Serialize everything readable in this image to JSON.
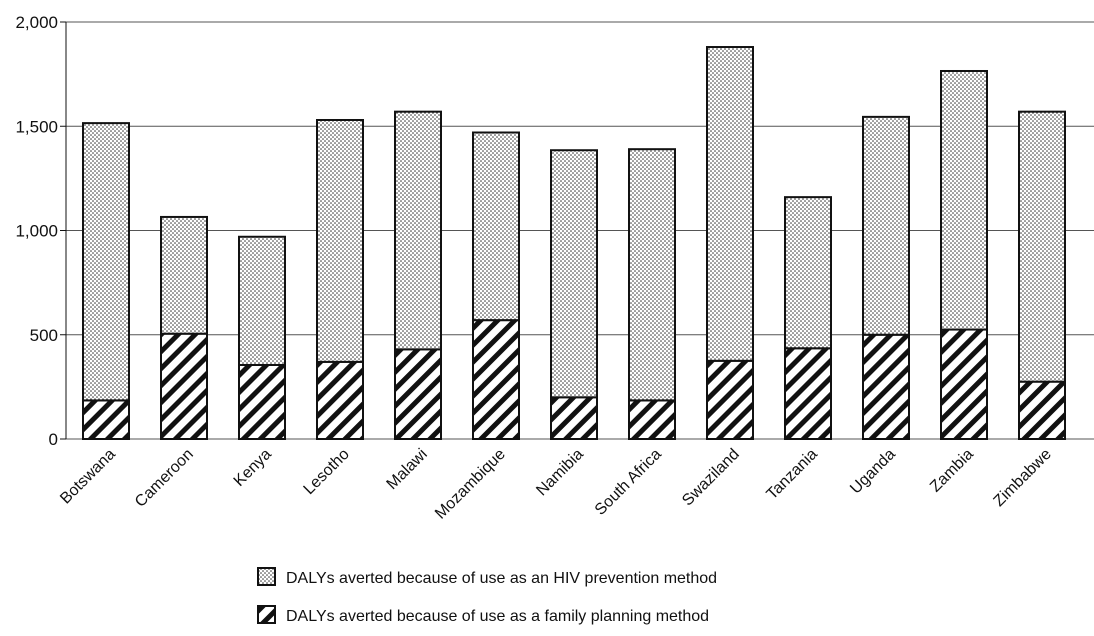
{
  "chart_data": {
    "type": "bar",
    "stacked": true,
    "categories": [
      "Botswana",
      "Cameroon",
      "Kenya",
      "Lesotho",
      "Malawi",
      "Mozambique",
      "Namibia",
      "South Africa",
      "Swaziland",
      "Tanzania",
      "Uganda",
      "Zambia",
      "Zimbabwe"
    ],
    "series": [
      {
        "name": "DALYs averted because of use as a family planning method",
        "pattern": "diagonal-hatch",
        "values": [
          185,
          505,
          355,
          370,
          430,
          570,
          200,
          185,
          375,
          435,
          500,
          525,
          275
        ]
      },
      {
        "name": "DALYs averted because of use as an HIV prevention method",
        "pattern": "dots",
        "values": [
          1330,
          560,
          615,
          1160,
          1140,
          900,
          1185,
          1205,
          1505,
          725,
          1045,
          1240,
          1295
        ]
      }
    ],
    "ylim": [
      0,
      2000
    ],
    "yticks": [
      0,
      500,
      1000,
      1500,
      2000
    ],
    "ytick_labels": [
      "0",
      "500",
      "1,000",
      "1,500",
      "2,000"
    ],
    "grid": true,
    "legend_position": "bottom",
    "legend": [
      {
        "label": "DALYs averted because of use as an HIV prevention method",
        "pattern": "dots"
      },
      {
        "label": "DALYs averted because of use as a family planning method",
        "pattern": "diagonal-hatch"
      }
    ],
    "colors": {
      "stroke": "#111111",
      "grid": "#555555",
      "dot": "#333333",
      "background": "#ffffff"
    }
  }
}
